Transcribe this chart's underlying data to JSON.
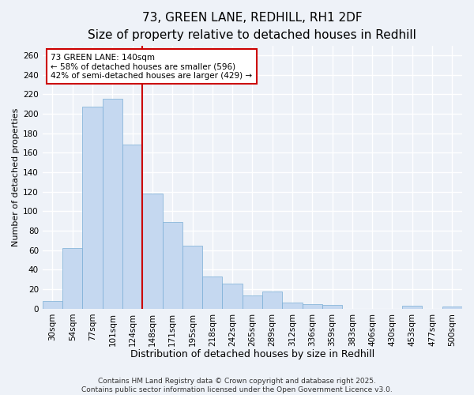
{
  "title1": "73, GREEN LANE, REDHILL, RH1 2DF",
  "title2": "Size of property relative to detached houses in Redhill",
  "xlabel": "Distribution of detached houses by size in Redhill",
  "ylabel": "Number of detached properties",
  "categories": [
    "30sqm",
    "54sqm",
    "77sqm",
    "101sqm",
    "124sqm",
    "148sqm",
    "171sqm",
    "195sqm",
    "218sqm",
    "242sqm",
    "265sqm",
    "289sqm",
    "312sqm",
    "336sqm",
    "359sqm",
    "383sqm",
    "406sqm",
    "430sqm",
    "453sqm",
    "477sqm",
    "500sqm"
  ],
  "values": [
    8,
    62,
    207,
    215,
    168,
    118,
    89,
    65,
    33,
    26,
    14,
    18,
    6,
    5,
    4,
    0,
    0,
    0,
    3,
    0,
    2
  ],
  "bar_color": "#c5d8f0",
  "bar_edge_color": "#7aaed6",
  "vline_x": 4.5,
  "vline_color": "#cc0000",
  "annotation_line1": "73 GREEN LANE: 140sqm",
  "annotation_line2": "← 58% of detached houses are smaller (596)",
  "annotation_line3": "42% of semi-detached houses are larger (429) →",
  "annotation_box_color": "#ffffff",
  "annotation_box_edge": "#cc0000",
  "annotation_fontsize": 7.5,
  "title1_fontsize": 11,
  "title2_fontsize": 10,
  "xlabel_fontsize": 9,
  "ylabel_fontsize": 8,
  "tick_fontsize": 7.5,
  "ylim": [
    0,
    270
  ],
  "yticks": [
    0,
    20,
    40,
    60,
    80,
    100,
    120,
    140,
    160,
    180,
    200,
    220,
    240,
    260
  ],
  "background_color": "#eef2f8",
  "grid_color": "#ffffff",
  "footer_text": "Contains HM Land Registry data © Crown copyright and database right 2025.\nContains public sector information licensed under the Open Government Licence v3.0.",
  "footer_fontsize": 6.5
}
